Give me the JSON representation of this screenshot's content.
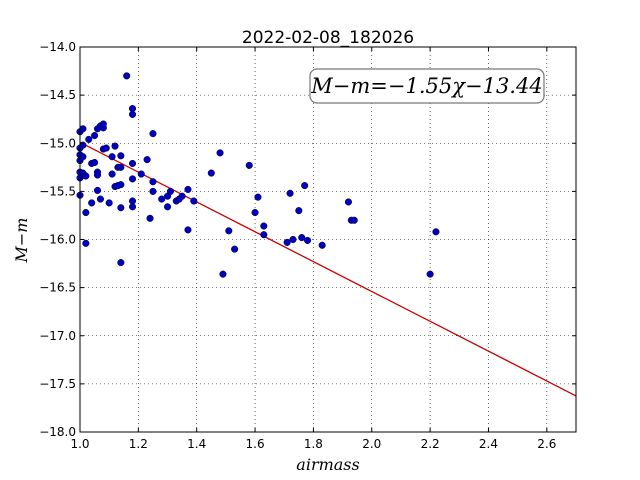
{
  "chart_data": {
    "type": "scatter",
    "title": "2022-02-08_182026",
    "xlabel": "airmass",
    "ylabel": "M−m",
    "xlim": [
      1.0,
      2.7
    ],
    "ylim": [
      -14.0,
      -18.0
    ],
    "y_inverted": true,
    "grid": true,
    "x_ticks": [
      1.0,
      1.2,
      1.4,
      1.6,
      1.8,
      2.0,
      2.2,
      2.4,
      2.6
    ],
    "x_tick_labels": [
      "1.0",
      "1.2",
      "1.4",
      "1.6",
      "1.8",
      "2.0",
      "2.2",
      "2.4",
      "2.6"
    ],
    "y_ticks": [
      -14.0,
      -14.5,
      -15.0,
      -15.5,
      -16.0,
      -16.5,
      -17.0,
      -17.5,
      -18.0
    ],
    "y_tick_labels": [
      "−14.0",
      "−14.5",
      "−15.0",
      "−15.5",
      "−16.0",
      "−16.5",
      "−17.0",
      "−17.5",
      "−18.0"
    ],
    "annotation": "M−m=−1.55χ−13.44",
    "fit": {
      "slope": -1.55,
      "intercept": -13.44,
      "x_range": [
        1.0,
        2.7
      ]
    },
    "series": [
      {
        "marker_color": "#0000bf",
        "line_color": "#cc0000",
        "points": [
          [
            1.0,
            -14.88
          ],
          [
            1.0,
            -15.05
          ],
          [
            1.0,
            -15.12
          ],
          [
            1.0,
            -15.18
          ],
          [
            1.0,
            -15.3
          ],
          [
            1.0,
            -15.36
          ],
          [
            1.0,
            -15.54
          ],
          [
            1.01,
            -14.85
          ],
          [
            1.01,
            -15.02
          ],
          [
            1.01,
            -15.14
          ],
          [
            1.01,
            -15.31
          ],
          [
            1.02,
            -15.34
          ],
          [
            1.02,
            -15.72
          ],
          [
            1.02,
            -16.04
          ],
          [
            1.03,
            -14.96
          ],
          [
            1.04,
            -15.21
          ],
          [
            1.04,
            -15.62
          ],
          [
            1.05,
            -14.92
          ],
          [
            1.05,
            -15.2
          ],
          [
            1.06,
            -14.85
          ],
          [
            1.06,
            -15.3
          ],
          [
            1.06,
            -15.33
          ],
          [
            1.06,
            -15.49
          ],
          [
            1.07,
            -14.82
          ],
          [
            1.07,
            -15.58
          ],
          [
            1.08,
            -14.84
          ],
          [
            1.08,
            -15.06
          ],
          [
            1.08,
            -14.8
          ],
          [
            1.09,
            -15.05
          ],
          [
            1.1,
            -15.62
          ],
          [
            1.11,
            -15.14
          ],
          [
            1.11,
            -15.32
          ],
          [
            1.12,
            -15.03
          ],
          [
            1.12,
            -15.45
          ],
          [
            1.13,
            -15.25
          ],
          [
            1.13,
            -15.44
          ],
          [
            1.14,
            -15.13
          ],
          [
            1.14,
            -15.25
          ],
          [
            1.14,
            -15.43
          ],
          [
            1.14,
            -15.67
          ],
          [
            1.14,
            -16.24
          ],
          [
            1.16,
            -14.3
          ],
          [
            1.18,
            -14.64
          ],
          [
            1.18,
            -14.7
          ],
          [
            1.18,
            -15.21
          ],
          [
            1.18,
            -15.37
          ],
          [
            1.18,
            -15.6
          ],
          [
            1.18,
            -15.66
          ],
          [
            1.21,
            -15.32
          ],
          [
            1.23,
            -15.17
          ],
          [
            1.24,
            -15.78
          ],
          [
            1.25,
            -14.9
          ],
          [
            1.25,
            -15.4
          ],
          [
            1.25,
            -15.5
          ],
          [
            1.28,
            -15.58
          ],
          [
            1.3,
            -15.55
          ],
          [
            1.3,
            -15.66
          ],
          [
            1.31,
            -15.5
          ],
          [
            1.33,
            -15.6
          ],
          [
            1.34,
            -15.58
          ],
          [
            1.35,
            -15.55
          ],
          [
            1.37,
            -15.48
          ],
          [
            1.37,
            -15.9
          ],
          [
            1.39,
            -15.6
          ],
          [
            1.45,
            -15.31
          ],
          [
            1.48,
            -15.1
          ],
          [
            1.49,
            -16.36
          ],
          [
            1.51,
            -15.91
          ],
          [
            1.53,
            -16.1
          ],
          [
            1.58,
            -15.23
          ],
          [
            1.6,
            -15.72
          ],
          [
            1.61,
            -15.56
          ],
          [
            1.63,
            -15.86
          ],
          [
            1.63,
            -15.95
          ],
          [
            1.71,
            -16.03
          ],
          [
            1.72,
            -15.52
          ],
          [
            1.73,
            -16.0
          ],
          [
            1.75,
            -15.7
          ],
          [
            1.76,
            -15.98
          ],
          [
            1.77,
            -15.44
          ],
          [
            1.78,
            -16.01
          ],
          [
            1.83,
            -16.06
          ],
          [
            1.92,
            -15.61
          ],
          [
            1.93,
            -15.8
          ],
          [
            1.94,
            -15.8
          ],
          [
            2.2,
            -16.36
          ],
          [
            2.22,
            -15.92
          ]
        ]
      }
    ]
  }
}
